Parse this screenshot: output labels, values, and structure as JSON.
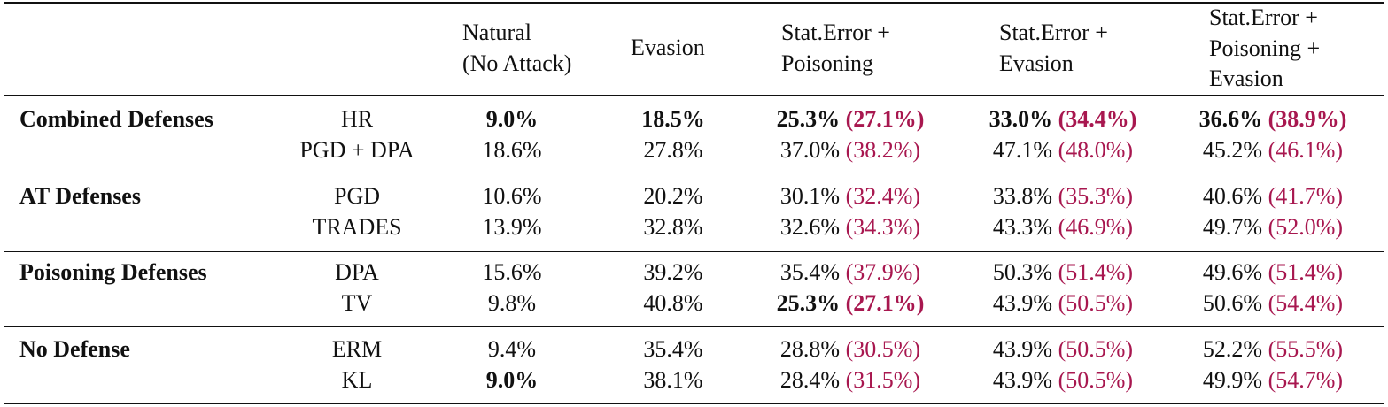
{
  "table": {
    "header": [
      [
        "Natural",
        "(No Attack)"
      ],
      [
        "Evasion"
      ],
      [
        "Stat.Error +",
        "Poisoning"
      ],
      [
        "Stat.Error +",
        "Evasion"
      ],
      [
        "Stat.Error +",
        "Poisoning +",
        "Evasion"
      ]
    ],
    "groups": [
      {
        "name": "Combined Defenses",
        "rows": [
          {
            "method": "HR",
            "cells": [
              {
                "main": "9.0%",
                "bold": true
              },
              {
                "main": "18.5%",
                "bold": true
              },
              {
                "main": "25.3%",
                "alt": "(27.1%)",
                "bold": true
              },
              {
                "main": "33.0%",
                "alt": "(34.4%)",
                "bold": true
              },
              {
                "main": "36.6%",
                "alt": "(38.9%)",
                "bold": true
              }
            ]
          },
          {
            "method": "PGD + DPA",
            "cells": [
              {
                "main": "18.6%"
              },
              {
                "main": "27.8%"
              },
              {
                "main": "37.0%",
                "alt": "(38.2%)"
              },
              {
                "main": "47.1%",
                "alt": "(48.0%)"
              },
              {
                "main": "45.2%",
                "alt": "(46.1%)"
              }
            ]
          }
        ]
      },
      {
        "name": "AT Defenses",
        "rows": [
          {
            "method": "PGD",
            "cells": [
              {
                "main": "10.6%"
              },
              {
                "main": "20.2%"
              },
              {
                "main": "30.1%",
                "alt": "(32.4%)"
              },
              {
                "main": "33.8%",
                "alt": "(35.3%)"
              },
              {
                "main": "40.6%",
                "alt": "(41.7%)"
              }
            ]
          },
          {
            "method": "TRADES",
            "cells": [
              {
                "main": "13.9%"
              },
              {
                "main": "32.8%"
              },
              {
                "main": "32.6%",
                "alt": "(34.3%)"
              },
              {
                "main": "43.3%",
                "alt": "(46.9%)"
              },
              {
                "main": "49.7%",
                "alt": "(52.0%)"
              }
            ]
          }
        ]
      },
      {
        "name": "Poisoning Defenses",
        "rows": [
          {
            "method": "DPA",
            "cells": [
              {
                "main": "15.6%"
              },
              {
                "main": "39.2%"
              },
              {
                "main": "35.4%",
                "alt": "(37.9%)"
              },
              {
                "main": "50.3%",
                "alt": "(51.4%)"
              },
              {
                "main": "49.6%",
                "alt": "(51.4%)"
              }
            ]
          },
          {
            "method": "TV",
            "cells": [
              {
                "main": "9.8%"
              },
              {
                "main": "40.8%"
              },
              {
                "main": "25.3%",
                "alt": "(27.1%)",
                "bold": true
              },
              {
                "main": "43.9%",
                "alt": "(50.5%)"
              },
              {
                "main": "50.6%",
                "alt": "(54.4%)"
              }
            ]
          }
        ]
      },
      {
        "name": "No Defense",
        "rows": [
          {
            "method": "ERM",
            "cells": [
              {
                "main": "9.4%"
              },
              {
                "main": "35.4%"
              },
              {
                "main": "28.8%",
                "alt": "(30.5%)"
              },
              {
                "main": "43.9%",
                "alt": "(50.5%)"
              },
              {
                "main": "52.2%",
                "alt": "(55.5%)"
              }
            ]
          },
          {
            "method": "KL",
            "cells": [
              {
                "main": "9.0%",
                "bold": true
              },
              {
                "main": "38.1%"
              },
              {
                "main": "28.4%",
                "alt": "(31.5%)"
              },
              {
                "main": "43.9%",
                "alt": "(50.5%)"
              },
              {
                "main": "49.9%",
                "alt": "(54.7%)"
              }
            ]
          }
        ]
      }
    ]
  }
}
